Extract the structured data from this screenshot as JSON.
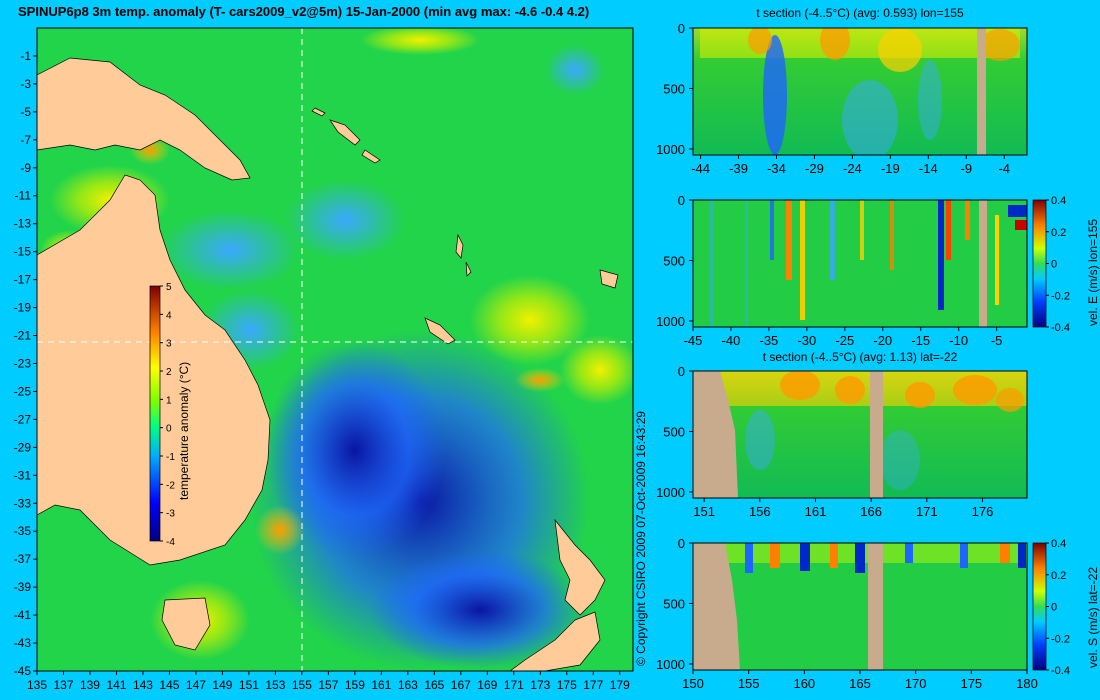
{
  "title": "SPINUP6p8 3m temp. anomaly (T- cars2009_v2@5m) 15-Jan-2000 (min avg max: -4.6 -0.4 4.2)",
  "copyright": "© Copyright CSIRO 2009   07-Oct-2009 16:43:29",
  "colors": {
    "background": "#00ccff",
    "land_map": "#ffcc99",
    "land_section": "#c8aa8c",
    "crosshair": "#ffffff"
  },
  "chart_data": [
    {
      "type": "heatmap",
      "name": "map",
      "x_ticks": [
        "135",
        "137",
        "139",
        "141",
        "143",
        "145",
        "147",
        "149",
        "151",
        "153",
        "155",
        "157",
        "159",
        "161",
        "163",
        "165",
        "167",
        "169",
        "171",
        "173",
        "175",
        "177",
        "179"
      ],
      "y_ticks": [
        "-1",
        "-3",
        "-5",
        "-7",
        "-9",
        "-11",
        "-13",
        "-15",
        "-17",
        "-19",
        "-21",
        "-23",
        "-25",
        "-27",
        "-29",
        "-31",
        "-33",
        "-35",
        "-37",
        "-39",
        "-41",
        "-43",
        "-45"
      ],
      "xlim": [
        135,
        180
      ],
      "ylim": [
        -45,
        1
      ],
      "crosshair": {
        "lon": 155,
        "lat": -22
      },
      "colorbar": {
        "label": "temperature anomaly (°C)",
        "ticks": [
          "5",
          "4",
          "3",
          "2",
          "1",
          "0",
          "-1",
          "-2",
          "-3",
          "-4"
        ],
        "range": [
          -4,
          5
        ]
      }
    },
    {
      "type": "heatmap",
      "name": "section-1",
      "title": "t section (-4..5°C) (avg: 0.593) lon=155",
      "x_ticks": [
        "-44",
        "-39",
        "-34",
        "-29",
        "-24",
        "-19",
        "-14",
        "-9",
        "-4"
      ],
      "xlim": [
        -45,
        -1
      ],
      "y_ticks": [
        "0",
        "500",
        "1000"
      ],
      "ylim": [
        0,
        1050
      ]
    },
    {
      "type": "heatmap",
      "name": "section-2",
      "title": "",
      "x_ticks": [
        "-45",
        "-40",
        "-35",
        "-30",
        "-25",
        "-20",
        "-15",
        "-10",
        "-5"
      ],
      "xlim": [
        -45,
        -1
      ],
      "y_ticks": [
        "0",
        "500",
        "1000"
      ],
      "ylim": [
        0,
        1050
      ],
      "colorbar": {
        "label": "vel. E (m/s) lon=155",
        "ticks": [
          "0.4",
          "0.2",
          "0",
          "-0.2",
          "-0.4"
        ],
        "range": [
          -0.4,
          0.4
        ]
      }
    },
    {
      "type": "heatmap",
      "name": "section-3",
      "title": "t section (-4..5°C) (avg: 1.13) lat=-22",
      "x_ticks": [
        "151",
        "156",
        "161",
        "166",
        "171",
        "176"
      ],
      "xlim": [
        150,
        180
      ],
      "y_ticks": [
        "0",
        "500",
        "1000"
      ],
      "ylim": [
        0,
        1050
      ]
    },
    {
      "type": "heatmap",
      "name": "section-4",
      "title": "",
      "x_ticks": [
        "150",
        "155",
        "160",
        "165",
        "170",
        "175",
        "180"
      ],
      "xlim": [
        150,
        180
      ],
      "y_ticks": [
        "0",
        "500",
        "1000"
      ],
      "ylim": [
        0,
        1050
      ],
      "colorbar": {
        "label": "vel. S (m/s) lat=-22",
        "ticks": [
          "0.4",
          "0.2",
          "0",
          "-0.2",
          "-0.4"
        ],
        "range": [
          -0.4,
          0.4
        ]
      }
    }
  ]
}
